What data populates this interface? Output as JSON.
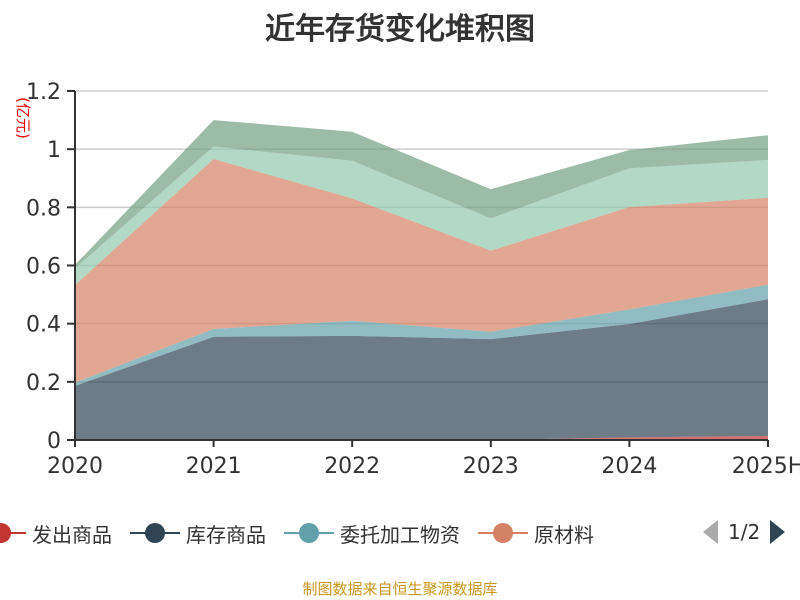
{
  "chart_data": {
    "type": "area",
    "stacked": true,
    "title": "近年存货变化堆积图",
    "ylabel": "(亿元)",
    "xlabel": "",
    "categories": [
      "2020",
      "2021",
      "2022",
      "2023",
      "2024",
      "2025H"
    ],
    "ylim": [
      0,
      1.2
    ],
    "yticks": [
      "0",
      "0.2",
      "0.4",
      "0.6",
      "0.8",
      "1",
      "1.2"
    ],
    "grid": true,
    "legend_position": "bottom",
    "series": [
      {
        "name": "发出商品",
        "color": "#c23531",
        "values": [
          0,
          0,
          0,
          0,
          0.009,
          0.014
        ]
      },
      {
        "name": "库存商品",
        "color": "#2f4554",
        "values": [
          0.186,
          0.355,
          0.358,
          0.347,
          0.39,
          0.47
        ]
      },
      {
        "name": "委托加工物资",
        "color": "#61a0a8",
        "values": [
          0.011,
          0.027,
          0.052,
          0.025,
          0.05,
          0.05
        ]
      },
      {
        "name": "原材料",
        "color": "#d48265",
        "values": [
          0.336,
          0.584,
          0.421,
          0.279,
          0.352,
          0.299
        ]
      },
      {
        "color": "#91c7ae",
        "values": [
          0.057,
          0.043,
          0.129,
          0.111,
          0.133,
          0.13
        ]
      },
      {
        "color": "#749f83",
        "values": [
          0.012,
          0.091,
          0.1,
          0.1,
          0.063,
          0.085
        ]
      }
    ]
  },
  "legend": {
    "page": "1/2"
  },
  "footer": "制图数据来自恒生聚源数据库"
}
